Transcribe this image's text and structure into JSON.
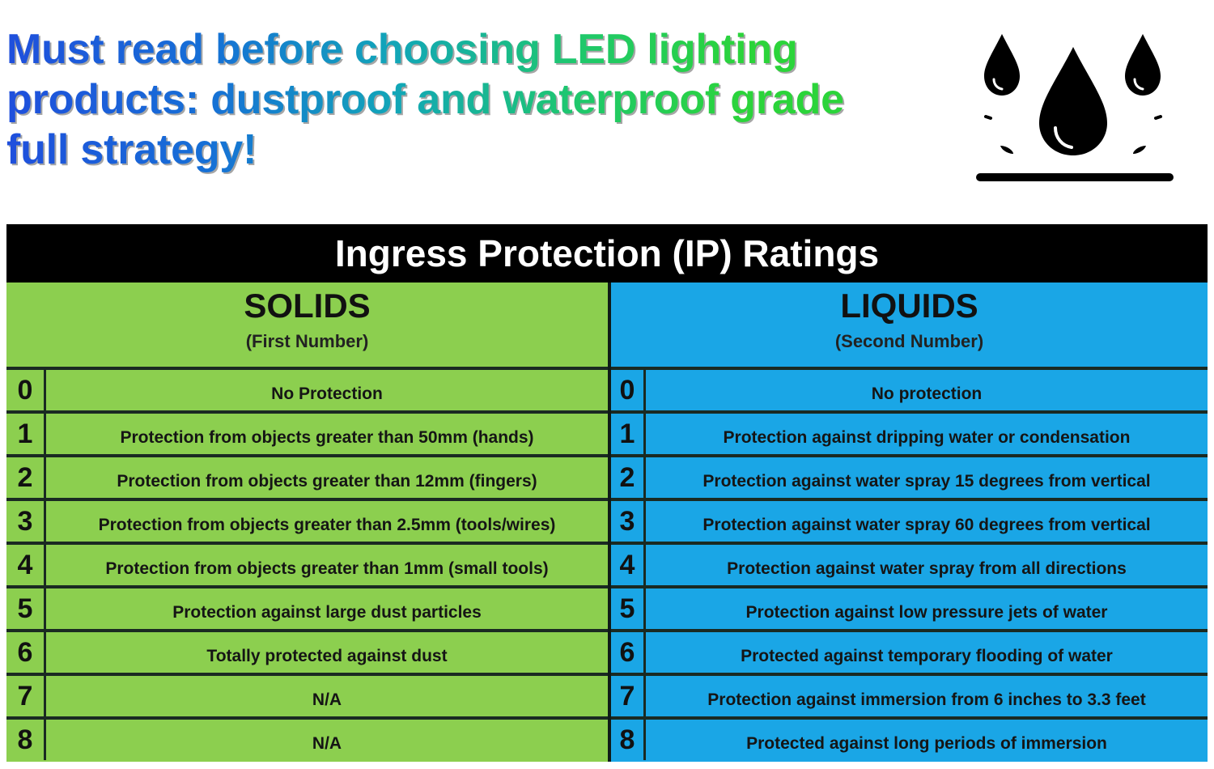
{
  "headline": {
    "line1": "Must read before choosing LED lighting",
    "line2": "products: dustproof and waterproof grade",
    "line3": "full strategy!"
  },
  "icon": {
    "name": "water-drops-icon"
  },
  "table": {
    "title": "Ingress Protection (IP) Ratings",
    "solids": {
      "title": "SOLIDS",
      "subtitle": "(First Number)",
      "rows": [
        {
          "num": "0",
          "text": "No Protection"
        },
        {
          "num": "1",
          "text": "Protection from objects greater than 50mm (hands)"
        },
        {
          "num": "2",
          "text": "Protection from objects greater than 12mm (fingers)"
        },
        {
          "num": "3",
          "text": "Protection from objects greater than 2.5mm (tools/wires)"
        },
        {
          "num": "4",
          "text": "Protection from objects greater than 1mm (small tools)"
        },
        {
          "num": "5",
          "text": "Protection against large dust particles"
        },
        {
          "num": "6",
          "text": "Totally protected against dust"
        },
        {
          "num": "7",
          "text": "N/A"
        },
        {
          "num": "8",
          "text": "N/A"
        }
      ]
    },
    "liquids": {
      "title": "LIQUIDS",
      "subtitle": "(Second Number)",
      "rows": [
        {
          "num": "0",
          "text": "No protection"
        },
        {
          "num": "1",
          "text": "Protection against dripping water or condensation"
        },
        {
          "num": "2",
          "text": "Protection against water spray 15 degrees from vertical"
        },
        {
          "num": "3",
          "text": "Protection against water spray 60 degrees from vertical"
        },
        {
          "num": "4",
          "text": "Protection against water spray from all directions"
        },
        {
          "num": "5",
          "text": "Protection against low pressure jets of water"
        },
        {
          "num": "6",
          "text": "Protected against temporary flooding of water"
        },
        {
          "num": "7",
          "text": "Protection against immersion from 6 inches to 3.3 feet"
        },
        {
          "num": "8",
          "text": "Protected against long periods of immersion"
        }
      ]
    }
  },
  "colors": {
    "solids_bg": "#8ccf4f",
    "liquids_bg": "#1aa6e6",
    "title_bar": "#000000"
  }
}
